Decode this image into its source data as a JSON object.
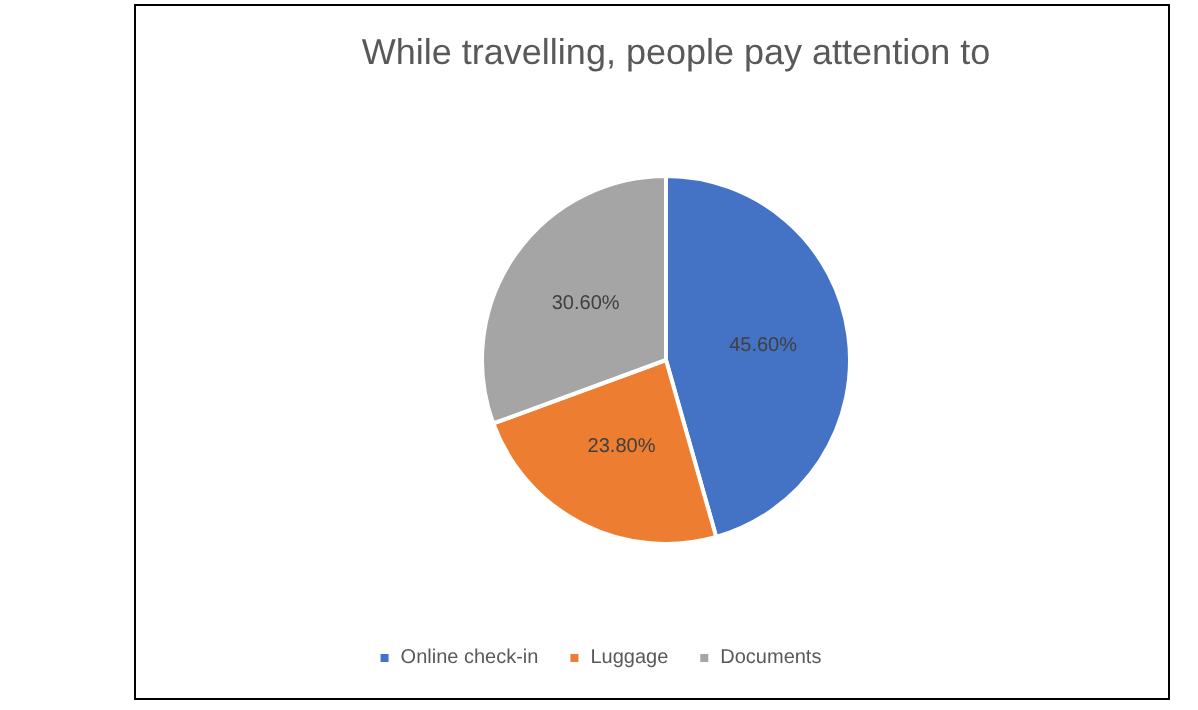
{
  "chart_data": {
    "type": "pie",
    "title": "While travelling, people pay attention to",
    "categories": [
      "Online check-in",
      "Luggage",
      "Documents"
    ],
    "values": [
      45.6,
      23.8,
      30.6
    ],
    "value_labels": [
      "45.60%",
      "23.80%",
      "30.60%"
    ],
    "colors": [
      "#4472c4",
      "#ed7d31",
      "#a5a5a5"
    ],
    "legend": "bottom"
  }
}
